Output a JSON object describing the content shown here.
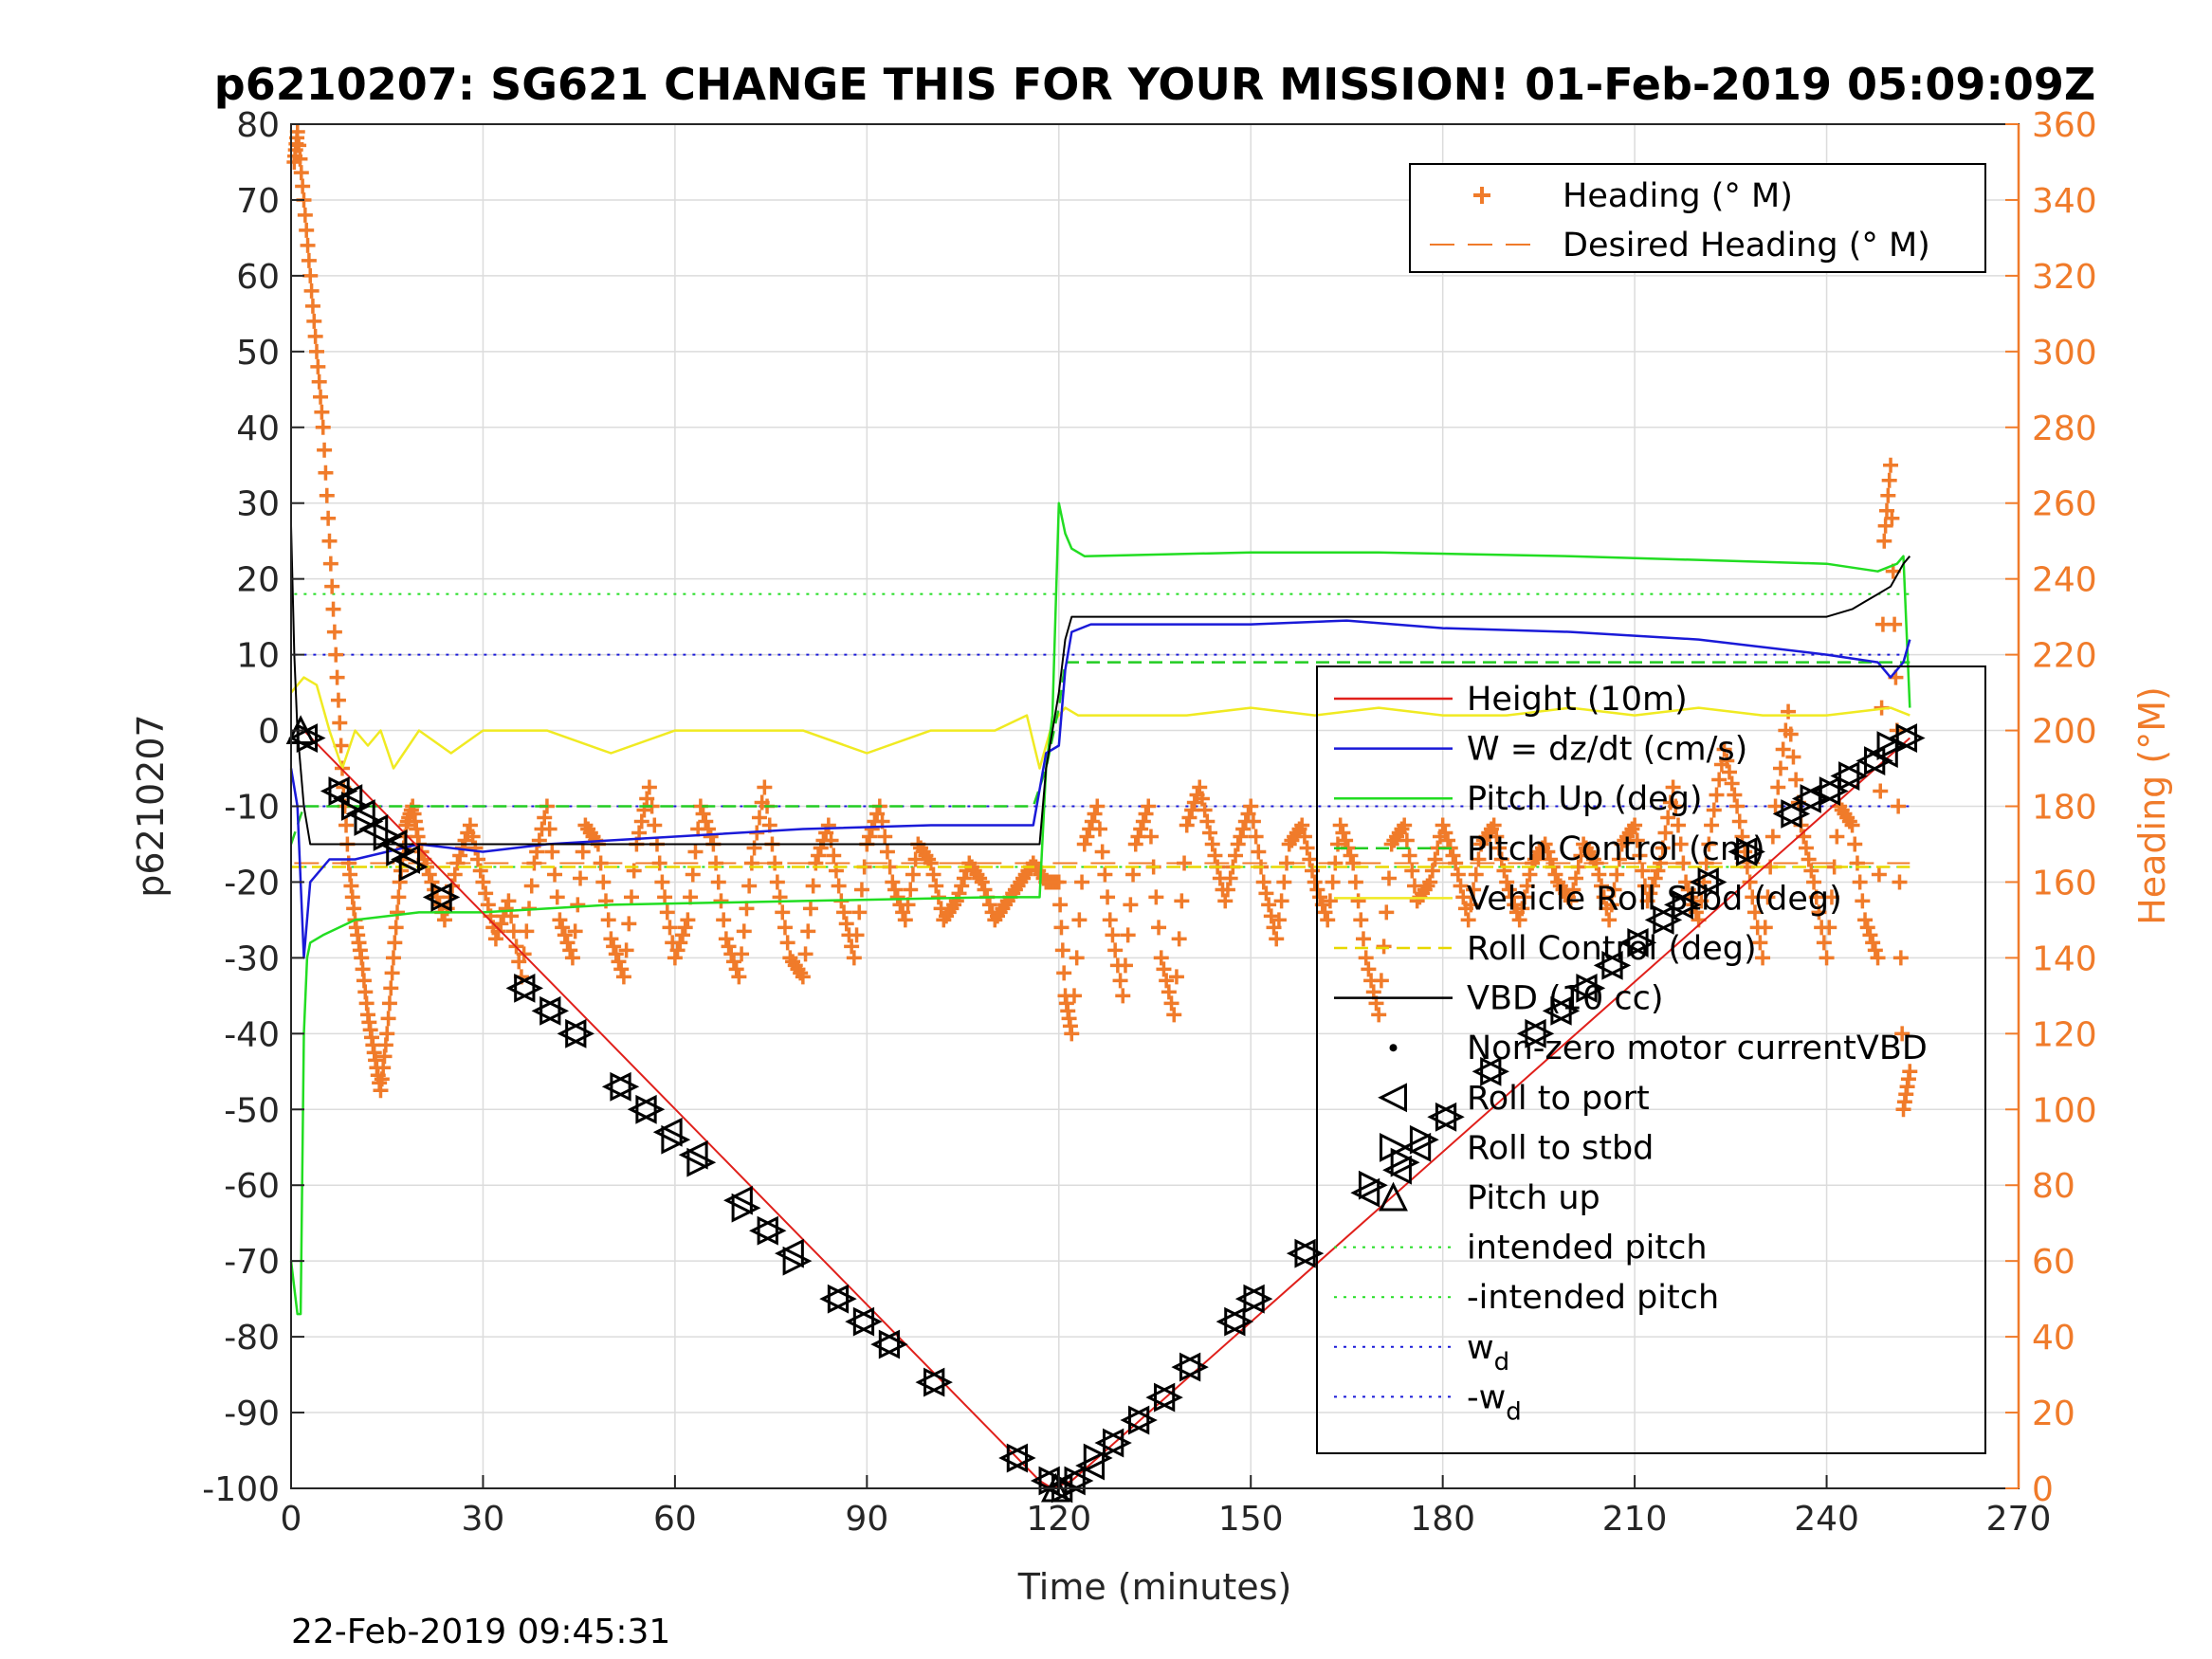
{
  "colors": {
    "orange": "#f07b2a",
    "height": "#e0201b",
    "w": "#1a1ad8",
    "pitch_up": "#22dd22",
    "pitch_control": "#22cc22",
    "roll_stbd": "#f0ea22",
    "roll_control": "#e8d800",
    "vbd": "#000000",
    "grid": "#dcdcdc"
  },
  "chart_data": {
    "type": "line",
    "title": "p6210207: SG621 CHANGE THIS FOR YOUR MISSION! 01-Feb-2019 05:09:09Z",
    "xlabel": "Time (minutes)",
    "ylabel_left": "p6210207",
    "ylabel_right": "Heading (°M)",
    "timestamp": "22-Feb-2019 09:45:31",
    "xlim": [
      0,
      270
    ],
    "ylim_left": [
      -100,
      80
    ],
    "ylim_right": [
      0,
      360
    ],
    "x_ticks": [
      0,
      30,
      60,
      90,
      120,
      150,
      180,
      210,
      240,
      270
    ],
    "y_ticks_left": [
      -100,
      -90,
      -80,
      -70,
      -60,
      -50,
      -40,
      -30,
      -20,
      -10,
      0,
      10,
      20,
      30,
      40,
      50,
      60,
      70,
      80
    ],
    "y_ticks_right": [
      0,
      20,
      40,
      60,
      80,
      100,
      120,
      140,
      160,
      180,
      200,
      220,
      240,
      260,
      280,
      300,
      320,
      340,
      360
    ],
    "grid": true,
    "legends": [
      {
        "placement": "top-right",
        "entries": [
          {
            "label": "Heading (° M)",
            "symbol": "plus",
            "color": "orange"
          },
          {
            "label": "Desired Heading (° M)",
            "symbol": "dash",
            "color": "orange"
          }
        ]
      },
      {
        "placement": "right",
        "entries": [
          {
            "label": "Height (10m)",
            "symbol": "line",
            "color": "height"
          },
          {
            "label": "W = dz/dt (cm/s)",
            "symbol": "line",
            "color": "w"
          },
          {
            "label": "Pitch Up (deg)",
            "symbol": "line",
            "color": "pitch_up"
          },
          {
            "label": "Pitch Control (cm)",
            "symbol": "dashline",
            "color": "pitch_control"
          },
          {
            "label": "Vehicle Roll Stbd (deg)",
            "symbol": "line",
            "color": "roll_stbd"
          },
          {
            "label": "Roll Control (deg)",
            "symbol": "dashline",
            "color": "roll_control"
          },
          {
            "label": "VBD (10 cc)",
            "symbol": "line",
            "color": "vbd"
          },
          {
            "label": "Non-zero motor currentVBD",
            "symbol": "dot",
            "color": "vbd"
          },
          {
            "label": "Roll to port",
            "symbol": "tri-left",
            "color": "vbd"
          },
          {
            "label": "Roll to stbd",
            "symbol": "tri-right",
            "color": "vbd"
          },
          {
            "label": "Pitch up",
            "symbol": "tri-up",
            "color": "vbd"
          },
          {
            "label": "intended pitch",
            "symbol": "dotted",
            "color": "pitch_up"
          },
          {
            "label": "-intended pitch",
            "symbol": "dotted",
            "color": "pitch_up"
          },
          {
            "label": "w",
            "sub": "d",
            "symbol": "dotted",
            "color": "w"
          },
          {
            "label": "-w",
            "sub": "d",
            "symbol": "dotted",
            "color": "w"
          }
        ]
      }
    ],
    "reference_lines": {
      "intended_pitch": 18,
      "minus_intended_pitch": -18,
      "w_d": 10,
      "minus_w_d": -10,
      "desired_heading_deg_m": 165
    },
    "series": [
      {
        "name": "Height (10m)",
        "x": [
          0,
          2,
          117,
          119,
          122,
          253
        ],
        "y": [
          0,
          0,
          -99,
          -100,
          -99,
          -1
        ]
      },
      {
        "name": "W = dz/dt (cm/s)",
        "x": [
          0,
          1,
          2,
          3,
          6,
          10,
          15,
          20,
          30,
          40,
          60,
          80,
          100,
          116,
          118,
          120,
          121,
          122,
          125,
          150,
          165,
          180,
          200,
          220,
          240,
          248,
          250,
          252,
          253
        ],
        "y": [
          -5,
          -10,
          -30,
          -20,
          -17,
          -17,
          -16,
          -15,
          -16,
          -15,
          -14,
          -13,
          -12.5,
          -12.5,
          -3,
          -2,
          8,
          13,
          14,
          14,
          14.5,
          13.5,
          13,
          12,
          10,
          9,
          7,
          9,
          12
        ]
      },
      {
        "name": "Pitch Up (deg)",
        "x": [
          0,
          1,
          1.5,
          2,
          2.5,
          3,
          5,
          10,
          20,
          30,
          50,
          80,
          110,
          117,
          118,
          119,
          120,
          121,
          122,
          124,
          150,
          170,
          200,
          240,
          248,
          251,
          252,
          253
        ],
        "y": [
          -70,
          -77,
          -77,
          -40,
          -30,
          -28,
          -27,
          -25,
          -24,
          -24,
          -23,
          -22.5,
          -22,
          -22,
          -5,
          2,
          30,
          26,
          24,
          23,
          23.5,
          23.5,
          23,
          22,
          21,
          22,
          23,
          3
        ]
      },
      {
        "name": "Pitch Control (cm)",
        "x": [
          0,
          2,
          116,
          118,
          120,
          121,
          253
        ],
        "y": [
          -15,
          -10,
          -10,
          -5,
          3,
          9,
          9
        ]
      },
      {
        "name": "Vehicle Roll Stbd (deg)",
        "x": [
          0,
          2,
          4,
          6,
          8,
          10,
          12,
          14,
          16,
          20,
          25,
          30,
          40,
          50,
          60,
          70,
          80,
          90,
          100,
          110,
          115,
          117,
          119,
          121,
          123,
          126,
          130,
          140,
          150,
          160,
          170,
          180,
          190,
          200,
          210,
          220,
          230,
          240,
          250,
          253
        ],
        "y": [
          5,
          7,
          6,
          0,
          -5,
          0,
          -2,
          0,
          -5,
          0,
          -3,
          0,
          0,
          -3,
          0,
          0,
          0,
          -3,
          0,
          0,
          2,
          -5,
          1,
          3,
          2,
          2,
          2,
          2,
          3,
          2,
          3,
          2,
          2,
          3,
          2,
          3,
          2,
          2,
          3,
          2
        ]
      },
      {
        "name": "Roll Control (deg)",
        "x": [
          0,
          2,
          116,
          118,
          253
        ],
        "y": [
          -18,
          -18,
          -18,
          -18,
          -18
        ]
      },
      {
        "name": "VBD (10 cc)",
        "x": [
          0,
          0.5,
          1,
          2,
          3,
          116,
          117,
          118,
          120,
          121,
          122,
          150,
          200,
          240,
          244,
          246,
          248,
          250,
          252,
          253
        ],
        "y": [
          27,
          10,
          0,
          -10,
          -15,
          -15,
          -15,
          -5,
          5,
          12,
          15,
          15,
          15,
          15,
          16,
          17,
          18,
          19,
          22,
          23
        ]
      },
      {
        "name": "Roll to port",
        "x": [
          2,
          7,
          9,
          11,
          13,
          16,
          18,
          23,
          36,
          40,
          44,
          51,
          55,
          59,
          63,
          70,
          74,
          78,
          85,
          89,
          93,
          100,
          113,
          118,
          120,
          122,
          125,
          128,
          132,
          136,
          140,
          147,
          150,
          158,
          168,
          173,
          176,
          180,
          187,
          194,
          198,
          202,
          206,
          210,
          214,
          217,
          221,
          227,
          234,
          237,
          240,
          243,
          247,
          249,
          252
        ],
        "y": [
          -1,
          -8,
          -9,
          -11,
          -13,
          -15,
          -17,
          -22,
          -34,
          -37,
          -40,
          -47,
          -50,
          -53,
          -56,
          -62,
          -66,
          -69,
          -75,
          -78,
          -81,
          -86,
          -96,
          -99,
          -100,
          -99,
          -97,
          -94,
          -91,
          -88,
          -84,
          -78,
          -75,
          -69,
          -61,
          -58,
          -55,
          -51,
          -45,
          -40,
          -37,
          -34,
          -31,
          -28,
          -25,
          -23,
          -20,
          -16,
          -11,
          -9,
          -8,
          -6,
          -4,
          -3,
          -1
        ]
      },
      {
        "name": "Roll to stbd",
        "x": [
          3,
          8,
          10,
          12,
          15,
          17,
          19,
          24,
          37,
          41,
          45,
          52,
          56,
          60,
          64,
          71,
          75,
          79,
          86,
          90,
          94,
          101,
          114,
          119,
          121,
          123,
          126,
          129,
          133,
          137,
          141,
          148,
          151,
          159,
          169,
          174,
          177,
          181,
          188,
          195,
          199,
          203,
          207,
          211,
          215,
          218,
          222,
          228,
          235,
          238,
          241,
          244,
          248,
          250,
          253
        ],
        "y": [
          -1,
          -8,
          -10,
          -12,
          -14,
          -16,
          -18,
          -22,
          -34,
          -37,
          -40,
          -47,
          -50,
          -54,
          -57,
          -63,
          -66,
          -70,
          -75,
          -78,
          -81,
          -86,
          -96,
          -99,
          -100,
          -99,
          -96,
          -94,
          -91,
          -88,
          -84,
          -78,
          -75,
          -69,
          -60,
          -57,
          -54,
          -51,
          -45,
          -40,
          -37,
          -34,
          -31,
          -28,
          -25,
          -23,
          -20,
          -16,
          -11,
          -9,
          -8,
          -6,
          -4,
          -2,
          -1
        ]
      },
      {
        "name": "Pitch up",
        "x": [
          1.5,
          119.5
        ],
        "y": [
          0,
          -100
        ]
      }
    ],
    "heading_series": {
      "name": "Heading (° M)",
      "x": [
        0.5,
        1,
        2,
        3,
        4,
        5,
        6,
        7,
        8,
        9,
        10,
        11,
        12,
        13,
        14,
        15,
        16,
        17,
        18,
        19,
        20,
        22,
        24,
        26,
        28,
        30,
        32,
        34,
        36,
        38,
        40,
        42,
        44,
        46,
        48,
        50,
        52,
        54,
        56,
        58,
        60,
        62,
        64,
        66,
        68,
        70,
        72,
        74,
        76,
        78,
        80,
        82,
        84,
        86,
        88,
        90,
        92,
        94,
        96,
        98,
        100,
        102,
        104,
        106,
        108,
        110,
        112,
        114,
        116,
        118,
        120,
        121,
        122,
        124,
        126,
        128,
        130,
        132,
        134,
        136,
        138,
        140,
        142,
        144,
        146,
        148,
        150,
        152,
        154,
        156,
        158,
        160,
        162,
        164,
        166,
        168,
        170,
        172,
        174,
        176,
        178,
        180,
        182,
        184,
        186,
        188,
        190,
        192,
        194,
        196,
        198,
        200,
        202,
        204,
        206,
        208,
        210,
        212,
        214,
        216,
        218,
        220,
        222,
        224,
        226,
        228,
        230,
        232,
        234,
        236,
        238,
        240,
        242,
        244,
        246,
        248,
        249,
        250,
        251,
        252,
        253
      ],
      "y": [
        350,
        358,
        340,
        320,
        300,
        280,
        250,
        220,
        190,
        165,
        150,
        140,
        125,
        115,
        105,
        120,
        140,
        160,
        175,
        180,
        170,
        160,
        150,
        165,
        175,
        160,
        145,
        155,
        135,
        165,
        180,
        150,
        140,
        175,
        170,
        145,
        135,
        170,
        185,
        160,
        140,
        150,
        180,
        170,
        145,
        135,
        165,
        185,
        160,
        140,
        135,
        165,
        175,
        155,
        140,
        170,
        180,
        160,
        150,
        170,
        165,
        150,
        155,
        165,
        160,
        150,
        155,
        160,
        165,
        160,
        160,
        130,
        120,
        170,
        180,
        150,
        130,
        170,
        180,
        140,
        125,
        175,
        185,
        170,
        155,
        170,
        180,
        160,
        145,
        170,
        175,
        160,
        150,
        175,
        165,
        140,
        125,
        170,
        175,
        155,
        160,
        175,
        165,
        150,
        170,
        175,
        160,
        150,
        165,
        170,
        160,
        155,
        170,
        165,
        150,
        170,
        175,
        155,
        165,
        185,
        160,
        150,
        175,
        195,
        180,
        160,
        140,
        180,
        205,
        175,
        160,
        140,
        180,
        175,
        150,
        140,
        250,
        270,
        200,
        100,
        110
      ]
    }
  }
}
